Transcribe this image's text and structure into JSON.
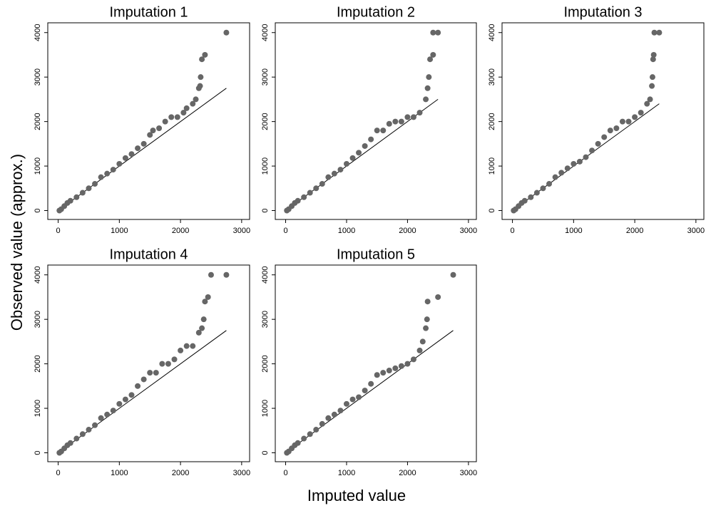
{
  "x_label": "Imputed value",
  "y_label": "Observed value (approx.)",
  "chart_data": [
    {
      "type": "scatter",
      "title": "Imputation 1",
      "color": "#666666",
      "line_color": "#000000",
      "x": [
        20,
        50,
        100,
        150,
        200,
        300,
        400,
        500,
        600,
        700,
        800,
        900,
        1000,
        1100,
        1200,
        1300,
        1400,
        1500,
        1550,
        1650,
        1750,
        1850,
        1950,
        2050,
        2100,
        2200,
        2250,
        2300,
        2320,
        2330,
        2350,
        2400,
        2750
      ],
      "values": [
        0,
        30,
        100,
        170,
        220,
        300,
        400,
        500,
        600,
        750,
        830,
        920,
        1050,
        1180,
        1270,
        1400,
        1500,
        1700,
        1800,
        1850,
        2000,
        2100,
        2100,
        2200,
        2300,
        2400,
        2500,
        2750,
        2800,
        3000,
        3400,
        3500,
        4000
      ],
      "line": {
        "x": [
          0,
          2750
        ],
        "y": [
          0,
          2750
        ]
      },
      "xlim": [
        -170,
        3130
      ],
      "ylim": [
        -200,
        4220
      ],
      "xticks": [
        0,
        1000,
        2000,
        3000
      ],
      "yticks": [
        0,
        1000,
        2000,
        3000,
        4000
      ]
    },
    {
      "type": "scatter",
      "title": "Imputation 2",
      "color": "#666666",
      "line_color": "#000000",
      "x": [
        20,
        50,
        100,
        150,
        200,
        300,
        400,
        500,
        600,
        700,
        800,
        900,
        1000,
        1100,
        1200,
        1300,
        1400,
        1500,
        1600,
        1700,
        1800,
        1900,
        2000,
        2100,
        2200,
        2300,
        2330,
        2350,
        2370,
        2420,
        2420,
        2500
      ],
      "values": [
        0,
        30,
        100,
        170,
        220,
        300,
        400,
        500,
        600,
        750,
        830,
        920,
        1050,
        1180,
        1300,
        1450,
        1600,
        1800,
        1800,
        1950,
        2000,
        2000,
        2100,
        2100,
        2200,
        2500,
        2750,
        3000,
        3400,
        3500,
        4000,
        4000
      ],
      "line": {
        "x": [
          0,
          2500
        ],
        "y": [
          0,
          2500
        ]
      },
      "xlim": [
        -170,
        3130
      ],
      "ylim": [
        -200,
        4220
      ],
      "xticks": [
        0,
        1000,
        2000,
        3000
      ],
      "yticks": [
        0,
        1000,
        2000,
        3000,
        4000
      ]
    },
    {
      "type": "scatter",
      "title": "Imputation 3",
      "color": "#666666",
      "line_color": "#000000",
      "x": [
        20,
        50,
        100,
        150,
        200,
        300,
        400,
        500,
        600,
        700,
        800,
        900,
        1000,
        1100,
        1200,
        1300,
        1400,
        1500,
        1600,
        1700,
        1800,
        1900,
        2000,
        2100,
        2200,
        2250,
        2280,
        2290,
        2300,
        2310,
        2320,
        2400
      ],
      "values": [
        0,
        30,
        100,
        170,
        220,
        300,
        400,
        500,
        600,
        750,
        850,
        950,
        1050,
        1100,
        1200,
        1350,
        1500,
        1650,
        1800,
        1850,
        2000,
        2000,
        2100,
        2200,
        2400,
        2500,
        2800,
        3000,
        3400,
        3500,
        4000,
        4000
      ],
      "line": {
        "x": [
          0,
          2400
        ],
        "y": [
          0,
          2400
        ]
      },
      "xlim": [
        -170,
        3130
      ],
      "ylim": [
        -200,
        4220
      ],
      "xticks": [
        0,
        1000,
        2000,
        3000
      ],
      "yticks": [
        0,
        1000,
        2000,
        3000,
        4000
      ]
    },
    {
      "type": "scatter",
      "title": "Imputation 4",
      "color": "#666666",
      "line_color": "#000000",
      "x": [
        20,
        50,
        100,
        150,
        200,
        300,
        400,
        500,
        600,
        700,
        800,
        900,
        1000,
        1100,
        1200,
        1300,
        1400,
        1500,
        1600,
        1700,
        1800,
        1900,
        2000,
        2100,
        2200,
        2300,
        2350,
        2380,
        2400,
        2450,
        2500,
        2750
      ],
      "values": [
        0,
        30,
        100,
        170,
        220,
        320,
        420,
        520,
        620,
        780,
        860,
        950,
        1100,
        1200,
        1300,
        1500,
        1650,
        1800,
        1800,
        2000,
        2000,
        2100,
        2300,
        2400,
        2400,
        2700,
        2800,
        3000,
        3400,
        3500,
        4000,
        4000
      ],
      "line": {
        "x": [
          0,
          2750
        ],
        "y": [
          0,
          2750
        ]
      },
      "xlim": [
        -170,
        3130
      ],
      "ylim": [
        -200,
        4220
      ],
      "xticks": [
        0,
        1000,
        2000,
        3000
      ],
      "yticks": [
        0,
        1000,
        2000,
        3000,
        4000
      ]
    },
    {
      "type": "scatter",
      "title": "Imputation 5",
      "color": "#666666",
      "line_color": "#000000",
      "x": [
        20,
        50,
        100,
        150,
        200,
        300,
        400,
        500,
        600,
        700,
        800,
        900,
        1000,
        1100,
        1200,
        1300,
        1400,
        1500,
        1600,
        1700,
        1800,
        1900,
        2000,
        2100,
        2200,
        2250,
        2300,
        2320,
        2330,
        2500,
        2750
      ],
      "values": [
        0,
        30,
        100,
        170,
        220,
        320,
        420,
        520,
        650,
        780,
        860,
        950,
        1100,
        1200,
        1250,
        1400,
        1550,
        1750,
        1800,
        1850,
        1900,
        1950,
        2000,
        2100,
        2300,
        2500,
        2800,
        3000,
        3400,
        3500,
        4000
      ],
      "line": {
        "x": [
          0,
          2750
        ],
        "y": [
          0,
          2750
        ]
      },
      "xlim": [
        -170,
        3130
      ],
      "ylim": [
        -200,
        4220
      ],
      "xticks": [
        0,
        1000,
        2000,
        3000
      ],
      "yticks": [
        0,
        1000,
        2000,
        3000,
        4000
      ]
    }
  ]
}
